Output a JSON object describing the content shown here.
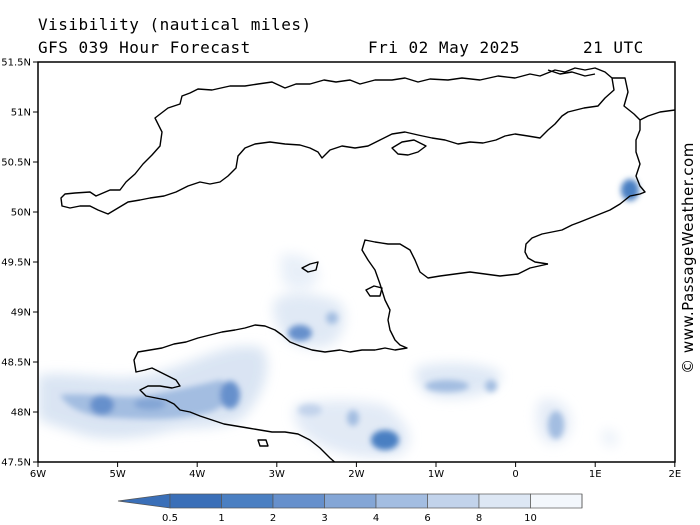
{
  "header": {
    "title": "Visibility (nautical miles)",
    "subtitle": "GFS 039 Hour Forecast",
    "date": "Fri 02 May 2025",
    "time": "21 UTC"
  },
  "credit": "© www.PassageWeather.com",
  "axes": {
    "lat_labels": [
      "51.5N",
      "51N",
      "50.5N",
      "50N",
      "49.5N",
      "49N",
      "48.5N",
      "48N",
      "47.5N"
    ],
    "lon_labels": [
      "6W",
      "5W",
      "4W",
      "3W",
      "2W",
      "1W",
      "0",
      "1E",
      "2E"
    ]
  },
  "colorbar": {
    "labels": [
      "0.5",
      "1",
      "2",
      "3",
      "4",
      "6",
      "8",
      "10"
    ],
    "colors": [
      "#3a6fb8",
      "#4a7fc2",
      "#6690cc",
      "#84a6d6",
      "#a3bde1",
      "#c2d3eb",
      "#dde7f4",
      "#f3f7fc"
    ]
  },
  "colors": {
    "coastline": "#000000",
    "fog_dark": "#4a7fc2",
    "fog_light": "#dbe6f4"
  }
}
